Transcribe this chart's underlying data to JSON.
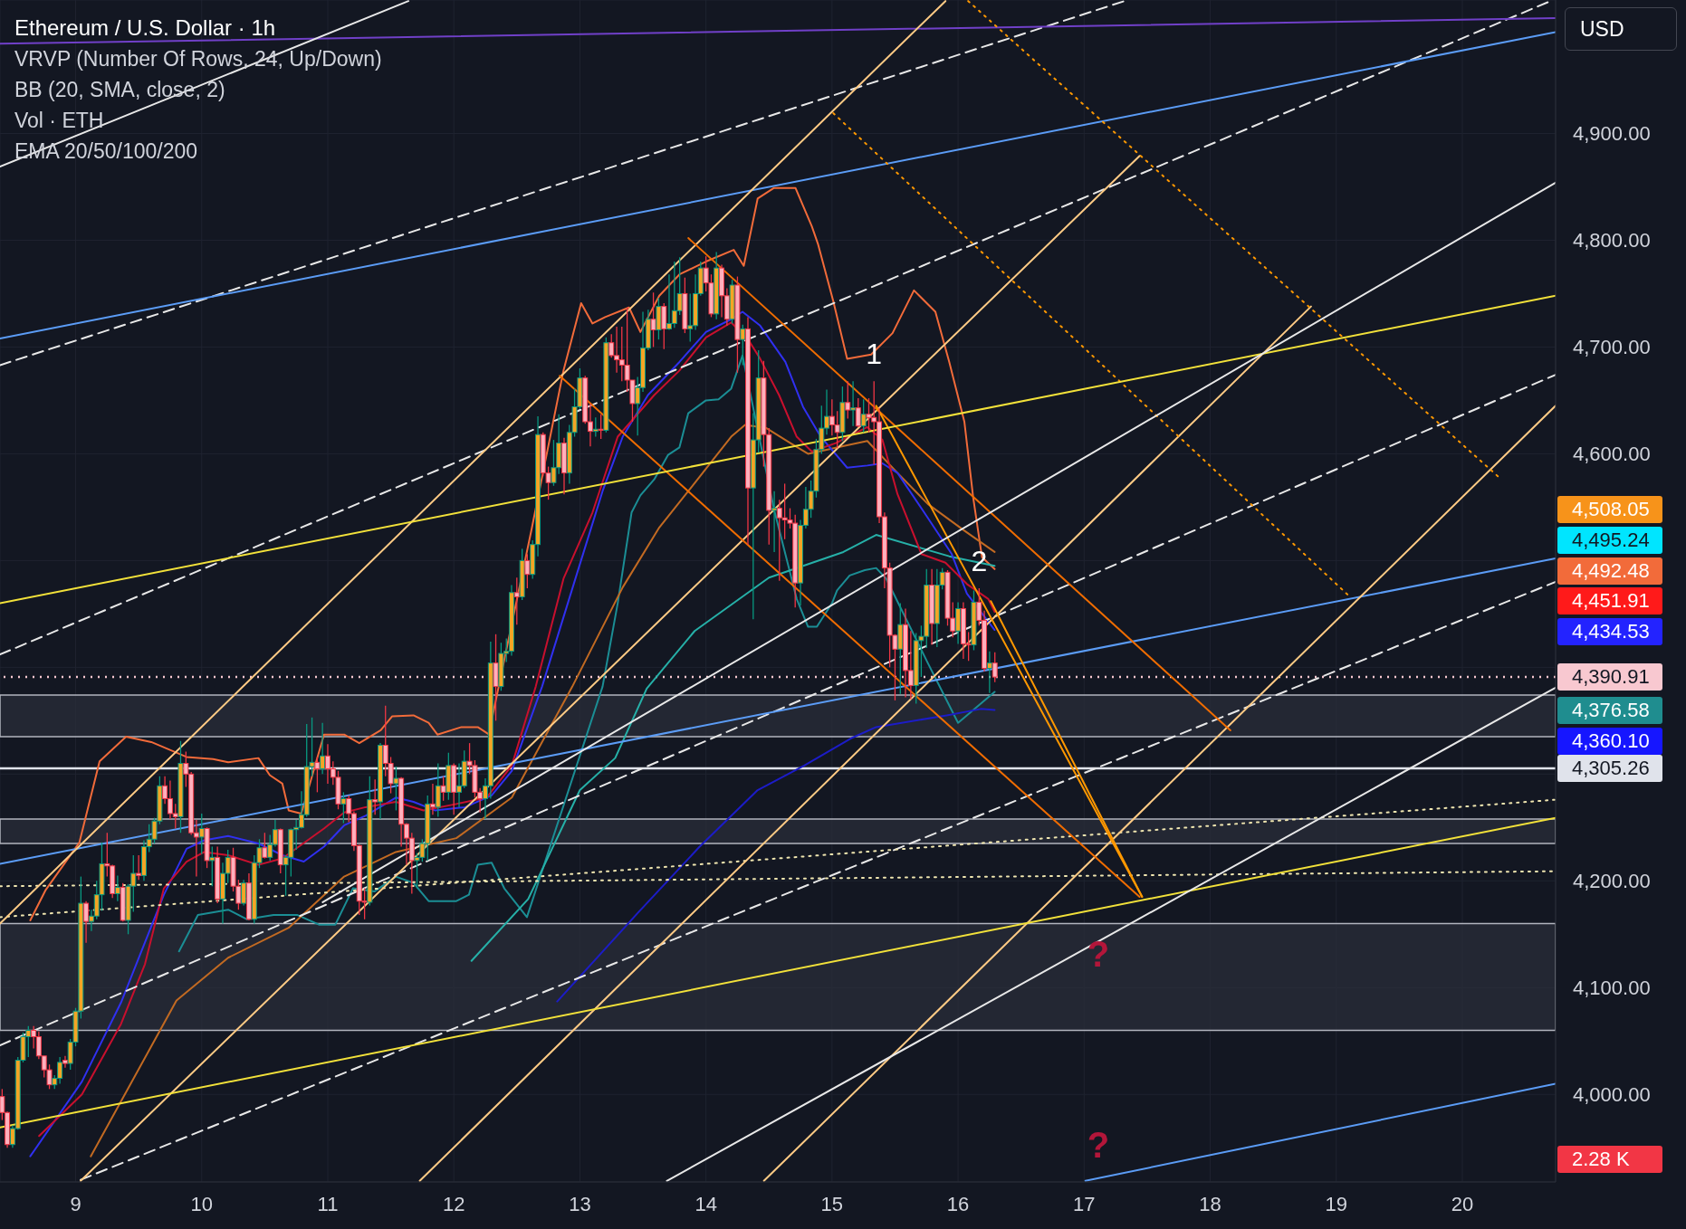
{
  "chart_data": {
    "type": "candlestick",
    "title": "Ethereum / U.S. Dollar · 1h",
    "ylabel": "USD",
    "annotations": [
      "VRVP (Number Of Rows, 24, Up/Down)",
      "BB (20, SMA, close, 2)",
      "Vol · ETH",
      "EMA 20/50/100/200",
      "2.28 K",
      {
        "text": "1",
        "x": 15.333,
        "y": 4668
      },
      {
        "text": "2",
        "x": 16.167,
        "y": 4474
      },
      "?",
      "?",
      "4,508.05",
      "4,495.24",
      "4,492.48",
      "4,451.91",
      "4,434.53",
      "4,376.58",
      "4,360.10"
    ],
    "xlim": [
      8.4,
      20.74
    ],
    "xticks": [
      9,
      10,
      11,
      12,
      13,
      14,
      15,
      16,
      17,
      18,
      19,
      20
    ],
    "ylim": [
      3918,
      5025
    ],
    "yticks": [
      {
        "value": 4000,
        "label": "4,000.00"
      },
      {
        "value": 4100,
        "label": "4,100.00"
      },
      {
        "value": 4200,
        "label": "4,200.00"
      },
      {
        "value": 4300,
        "label": null
      },
      {
        "value": 4400,
        "label": null
      },
      {
        "value": 4500,
        "label": null
      },
      {
        "value": 4600,
        "label": "4,600.00"
      },
      {
        "value": 4700,
        "label": "4,700.00"
      },
      {
        "value": 4800,
        "label": "4,800.00"
      },
      {
        "value": 4900,
        "label": "4,900.00"
      }
    ],
    "grid": true,
    "ref_lines": [
      {
        "axis": "y",
        "value": 4390.91,
        "label": "4,390.91",
        "color": "#f8c8d0",
        "line_style": "dotted"
      },
      {
        "axis": "y",
        "value": 4305.26,
        "label": "4,305.26",
        "color": "#e0e3eb"
      }
    ],
    "bands": [
      {
        "axis": "y",
        "from": 4335,
        "to": 4374,
        "color": "#2a2e39"
      },
      {
        "axis": "y",
        "from": 4235,
        "to": 4258,
        "color": "#2a2e39"
      },
      {
        "axis": "y",
        "from": 4060,
        "to": 4160,
        "color": "#2a2e39"
      }
    ],
    "x": [
      8.417,
      8.458,
      8.5,
      8.542,
      8.583,
      8.625,
      8.667,
      8.708,
      8.75,
      8.792,
      8.833,
      8.875,
      8.917,
      8.958,
      9,
      9.042,
      9.083,
      9.125,
      9.167,
      9.208,
      9.25,
      9.292,
      9.333,
      9.375,
      9.417,
      9.458,
      9.5,
      9.542,
      9.583,
      9.625,
      9.667,
      9.708,
      9.75,
      9.792,
      9.833,
      9.875,
      9.917,
      9.958,
      10,
      10.042,
      10.083,
      10.125,
      10.167,
      10.208,
      10.25,
      10.292,
      10.333,
      10.375,
      10.417,
      10.458,
      10.5,
      10.542,
      10.583,
      10.625,
      10.667,
      10.708,
      10.75,
      10.792,
      10.833,
      10.875,
      10.917,
      10.958,
      11,
      11.042,
      11.083,
      11.125,
      11.167,
      11.208,
      11.25,
      11.292,
      11.333,
      11.375,
      11.417,
      11.458,
      11.5,
      11.542,
      11.583,
      11.625,
      11.667,
      11.708,
      11.75,
      11.792,
      11.833,
      11.875,
      11.917,
      11.958,
      12,
      12.042,
      12.083,
      12.125,
      12.167,
      12.208,
      12.25,
      12.292,
      12.333,
      12.375,
      12.417,
      12.458,
      12.5,
      12.542,
      12.583,
      12.625,
      12.667,
      12.708,
      12.75,
      12.792,
      12.833,
      12.875,
      12.917,
      12.958,
      13,
      13.042,
      13.083,
      13.125,
      13.167,
      13.208,
      13.25,
      13.292,
      13.333,
      13.375,
      13.417,
      13.458,
      13.5,
      13.542,
      13.583,
      13.625,
      13.667,
      13.708,
      13.75,
      13.792,
      13.833,
      13.875,
      13.917,
      13.958,
      14,
      14.042,
      14.083,
      14.125,
      14.167,
      14.208,
      14.25,
      14.292,
      14.333,
      14.375,
      14.417,
      14.458,
      14.5,
      14.542,
      14.583,
      14.625,
      14.667,
      14.708,
      14.75,
      14.792,
      14.833,
      14.875,
      14.917,
      14.958,
      15,
      15.042,
      15.083,
      15.125,
      15.167,
      15.208,
      15.25,
      15.292,
      15.333,
      15.375,
      15.417,
      15.458,
      15.5,
      15.542,
      15.583,
      15.625,
      15.667,
      15.708,
      15.75,
      15.792,
      15.833,
      15.875,
      15.917,
      15.958,
      16,
      16.042,
      16.083,
      16.125,
      16.167,
      16.208,
      16.25,
      16.292
    ],
    "ohlc": [
      [
        3998,
        4005,
        3976,
        3983
      ],
      [
        3983,
        3984,
        3950,
        3953
      ],
      [
        3953,
        3971,
        3950,
        3968
      ],
      [
        3968,
        4035,
        3967,
        4032
      ],
      [
        4032,
        4058,
        4030,
        4054
      ],
      [
        4054,
        4064,
        4035,
        4060
      ],
      [
        4060,
        4064,
        4043,
        4054
      ],
      [
        4054,
        4059,
        4033,
        4036
      ],
      [
        4036,
        4036,
        4016,
        4023
      ],
      [
        4023,
        4028,
        4005,
        4009
      ],
      [
        4009,
        4018,
        4005,
        4015
      ],
      [
        4015,
        4035,
        4010,
        4030
      ],
      [
        4032,
        4036,
        4025,
        4029
      ],
      [
        4029,
        4052,
        4023,
        4049
      ],
      [
        4049,
        4081,
        4045,
        4078
      ],
      [
        4078,
        4204,
        4071,
        4179
      ],
      [
        4179,
        4181,
        4142,
        4162
      ],
      [
        4162,
        4173,
        4153,
        4167
      ],
      [
        4167,
        4200,
        4164,
        4187
      ],
      [
        4187,
        4236,
        4172,
        4216
      ],
      [
        4216,
        4245,
        4204,
        4214
      ],
      [
        4214,
        4215,
        4184,
        4188
      ],
      [
        4188,
        4205,
        4181,
        4194
      ],
      [
        4194,
        4198,
        4162,
        4163
      ],
      [
        4163,
        4197,
        4150,
        4195
      ],
      [
        4195,
        4224,
        4171,
        4207
      ],
      [
        4207,
        4224,
        4201,
        4205
      ],
      [
        4205,
        4238,
        4200,
        4232
      ],
      [
        4232,
        4253,
        4227,
        4239
      ],
      [
        4239,
        4259,
        4235,
        4256
      ],
      [
        4256,
        4298,
        4253,
        4289
      ],
      [
        4289,
        4298,
        4272,
        4277
      ],
      [
        4277,
        4294,
        4258,
        4263
      ],
      [
        4263,
        4272,
        4249,
        4260
      ],
      [
        4260,
        4331,
        4245,
        4310
      ],
      [
        4310,
        4321,
        4288,
        4300
      ],
      [
        4300,
        4302,
        4243,
        4245
      ],
      [
        4245,
        4257,
        4204,
        4241
      ],
      [
        4241,
        4263,
        4225,
        4249
      ],
      [
        4249,
        4250,
        4212,
        4219
      ],
      [
        4219,
        4232,
        4195,
        4222
      ],
      [
        4222,
        4232,
        4179,
        4183
      ],
      [
        4183,
        4217,
        4160,
        4207
      ],
      [
        4207,
        4229,
        4198,
        4222
      ],
      [
        4222,
        4231,
        4190,
        4195
      ],
      [
        4195,
        4201,
        4173,
        4179
      ],
      [
        4179,
        4201,
        4177,
        4198
      ],
      [
        4198,
        4207,
        4163,
        4164
      ],
      [
        4164,
        4224,
        4160,
        4217
      ],
      [
        4217,
        4239,
        4212,
        4231
      ],
      [
        4231,
        4245,
        4221,
        4222
      ],
      [
        4222,
        4243,
        4219,
        4234
      ],
      [
        4234,
        4257,
        4232,
        4248
      ],
      [
        4248,
        4249,
        4207,
        4215
      ],
      [
        4215,
        4224,
        4186,
        4222
      ],
      [
        4222,
        4249,
        4204,
        4248
      ],
      [
        4248,
        4257,
        4229,
        4250
      ],
      [
        4250,
        4284,
        4249,
        4262
      ],
      [
        4262,
        4347,
        4260,
        4307
      ],
      [
        4307,
        4353,
        4298,
        4311
      ],
      [
        4311,
        4316,
        4283,
        4305
      ],
      [
        4305,
        4348,
        4300,
        4317
      ],
      [
        4317,
        4328,
        4291,
        4305
      ],
      [
        4305,
        4312,
        4290,
        4297
      ],
      [
        4297,
        4303,
        4267,
        4272
      ],
      [
        4272,
        4283,
        4254,
        4277
      ],
      [
        4277,
        4280,
        4255,
        4263
      ],
      [
        4263,
        4265,
        4228,
        4233
      ],
      [
        4233,
        4234,
        4168,
        4181
      ],
      [
        4181,
        4193,
        4164,
        4180
      ],
      [
        4180,
        4298,
        4177,
        4276
      ],
      [
        4276,
        4295,
        4262,
        4274
      ],
      [
        4274,
        4329,
        4258,
        4327
      ],
      [
        4327,
        4364,
        4298,
        4310
      ],
      [
        4310,
        4316,
        4282,
        4291
      ],
      [
        4291,
        4307,
        4266,
        4296
      ],
      [
        4296,
        4297,
        4232,
        4253
      ],
      [
        4253,
        4254,
        4215,
        4240
      ],
      [
        4240,
        4245,
        4188,
        4219
      ],
      [
        4219,
        4226,
        4193,
        4222
      ],
      [
        4222,
        4239,
        4218,
        4235
      ],
      [
        4235,
        4280,
        4219,
        4272
      ],
      [
        4272,
        4291,
        4262,
        4269
      ],
      [
        4269,
        4310,
        4260,
        4289
      ],
      [
        4289,
        4298,
        4275,
        4283
      ],
      [
        4283,
        4320,
        4276,
        4308
      ],
      [
        4308,
        4310,
        4262,
        4283
      ],
      [
        4283,
        4310,
        4269,
        4289
      ],
      [
        4289,
        4322,
        4287,
        4312
      ],
      [
        4312,
        4329,
        4300,
        4308
      ],
      [
        4308,
        4313,
        4278,
        4283
      ],
      [
        4283,
        4287,
        4264,
        4277
      ],
      [
        4277,
        4296,
        4258,
        4289
      ],
      [
        4289,
        4424,
        4277,
        4404
      ],
      [
        4404,
        4431,
        4350,
        4382
      ],
      [
        4382,
        4423,
        4378,
        4413
      ],
      [
        4413,
        4427,
        4405,
        4415
      ],
      [
        4415,
        4477,
        4411,
        4470
      ],
      [
        4470,
        4484,
        4440,
        4466
      ],
      [
        4466,
        4511,
        4463,
        4500
      ],
      [
        4500,
        4506,
        4474,
        4487
      ],
      [
        4487,
        4519,
        4483,
        4515
      ],
      [
        4515,
        4635,
        4504,
        4618
      ],
      [
        4618,
        4620,
        4579,
        4582
      ],
      [
        4582,
        4588,
        4557,
        4573
      ],
      [
        4573,
        4613,
        4570,
        4587
      ],
      [
        4587,
        4637,
        4581,
        4610
      ],
      [
        4610,
        4615,
        4562,
        4582
      ],
      [
        4582,
        4627,
        4572,
        4620
      ],
      [
        4620,
        4661,
        4616,
        4644
      ],
      [
        4644,
        4680,
        4642,
        4671
      ],
      [
        4671,
        4673,
        4628,
        4630
      ],
      [
        4630,
        4647,
        4607,
        4621
      ],
      [
        4621,
        4634,
        4616,
        4623
      ],
      [
        4623,
        4637,
        4614,
        4622
      ],
      [
        4622,
        4709,
        4620,
        4704
      ],
      [
        4704,
        4712,
        4690,
        4692
      ],
      [
        4692,
        4719,
        4676,
        4688
      ],
      [
        4688,
        4719,
        4668,
        4683
      ],
      [
        4683,
        4737,
        4658,
        4669
      ],
      [
        4669,
        4669,
        4630,
        4647
      ],
      [
        4647,
        4672,
        4617,
        4662
      ],
      [
        4662,
        4733,
        4658,
        4699
      ],
      [
        4699,
        4735,
        4697,
        4726
      ],
      [
        4726,
        4751,
        4700,
        4716
      ],
      [
        4716,
        4746,
        4707,
        4738
      ],
      [
        4738,
        4741,
        4698,
        4717
      ],
      [
        4717,
        4768,
        4716,
        4722
      ],
      [
        4722,
        4780,
        4718,
        4734
      ],
      [
        4734,
        4784,
        4730,
        4750
      ],
      [
        4750,
        4765,
        4713,
        4717
      ],
      [
        4717,
        4750,
        4705,
        4720
      ],
      [
        4720,
        4768,
        4716,
        4750
      ],
      [
        4750,
        4780,
        4748,
        4774
      ],
      [
        4774,
        4785,
        4752,
        4760
      ],
      [
        4760,
        4768,
        4728,
        4731
      ],
      [
        4731,
        4789,
        4726,
        4774
      ],
      [
        4774,
        4777,
        4728,
        4748
      ],
      [
        4748,
        4755,
        4720,
        4726
      ],
      [
        4726,
        4763,
        4722,
        4758
      ],
      [
        4758,
        4766,
        4676,
        4707
      ],
      [
        4707,
        4721,
        4683,
        4717
      ],
      [
        4717,
        4728,
        4515,
        4568
      ],
      [
        4568,
        4638,
        4445,
        4613
      ],
      [
        4613,
        4697,
        4601,
        4671
      ],
      [
        4671,
        4687,
        4588,
        4618
      ],
      [
        4618,
        4624,
        4515,
        4547
      ],
      [
        4547,
        4565,
        4508,
        4549
      ],
      [
        4549,
        4557,
        4481,
        4540
      ],
      [
        4540,
        4572,
        4520,
        4538
      ],
      [
        4538,
        4549,
        4530,
        4535
      ],
      [
        4535,
        4543,
        4456,
        4479
      ],
      [
        4479,
        4538,
        4458,
        4533
      ],
      [
        4533,
        4569,
        4530,
        4548
      ],
      [
        4548,
        4575,
        4540,
        4565
      ],
      [
        4565,
        4614,
        4559,
        4604
      ],
      [
        4604,
        4645,
        4600,
        4624
      ],
      [
        4624,
        4660,
        4618,
        4635
      ],
      [
        4635,
        4651,
        4617,
        4627
      ],
      [
        4627,
        4640,
        4605,
        4620
      ],
      [
        4620,
        4663,
        4612,
        4648
      ],
      [
        4648,
        4668,
        4633,
        4641
      ],
      [
        4641,
        4668,
        4626,
        4643
      ],
      [
        4643,
        4652,
        4625,
        4626
      ],
      [
        4626,
        4651,
        4620,
        4637
      ],
      [
        4637,
        4652,
        4620,
        4634
      ],
      [
        4634,
        4668,
        4590,
        4630
      ],
      [
        4630,
        4643,
        4535,
        4541
      ],
      [
        4541,
        4545,
        4474,
        4493
      ],
      [
        4493,
        4498,
        4400,
        4430
      ],
      [
        4430,
        4431,
        4369,
        4417
      ],
      [
        4417,
        4460,
        4375,
        4440
      ],
      [
        4440,
        4455,
        4372,
        4397
      ],
      [
        4397,
        4434,
        4370,
        4383
      ],
      [
        4383,
        4432,
        4366,
        4425
      ],
      [
        4425,
        4439,
        4391,
        4429
      ],
      [
        4429,
        4492,
        4418,
        4477
      ],
      [
        4477,
        4492,
        4421,
        4441
      ],
      [
        4441,
        4492,
        4419,
        4477
      ],
      [
        4477,
        4493,
        4473,
        4489
      ],
      [
        4489,
        4491,
        4439,
        4446
      ],
      [
        4446,
        4461,
        4428,
        4434
      ],
      [
        4434,
        4461,
        4422,
        4455
      ],
      [
        4455,
        4461,
        4408,
        4422
      ],
      [
        4422,
        4433,
        4406,
        4421
      ],
      [
        4421,
        4472,
        4416,
        4461
      ],
      [
        4461,
        4474,
        4439,
        4444
      ],
      [
        4444,
        4453,
        4396,
        4399
      ],
      [
        4399,
        4415,
        4376,
        4404
      ],
      [
        4404,
        4414,
        4386,
        4390.91
      ]
    ],
    "series": [
      {
        "type": "line",
        "color": "#f26b3a",
        "x": [
          8.64,
          8.76,
          9.03,
          9.19,
          9.4,
          9.6,
          9.88,
          10.09,
          10.21,
          10.45,
          10.54,
          10.64,
          10.69,
          10.79,
          10.97,
          11.13,
          11.25,
          11.42,
          11.51,
          11.68,
          11.8,
          11.87,
          12.06,
          12.19,
          12.28,
          12.31,
          12.62,
          12.87,
          13.01,
          13.1,
          13.2,
          13.39,
          13.48,
          13.63,
          13.79,
          14.0,
          14.22,
          14.3,
          14.41,
          14.54,
          14.71,
          14.84,
          14.89,
          15.01,
          15.12,
          15.31,
          15.48,
          15.65,
          15.82,
          15.93,
          16.05,
          16.12,
          16.19,
          16.29
        ],
        "values": [
          4163,
          4191,
          4236,
          4312,
          4335,
          4330,
          4316,
          4314,
          4311,
          4315,
          4299,
          4291,
          4266,
          4263,
          4337,
          4337,
          4329,
          4341,
          4354,
          4355,
          4348,
          4337,
          4344,
          4344,
          4337,
          4356,
          4531,
          4678,
          4741,
          4722,
          4728,
          4737,
          4714,
          4748,
          4768,
          4780,
          4791,
          4776,
          4839,
          4849,
          4849,
          4813,
          4796,
          4743,
          4689,
          4693,
          4713,
          4753,
          4733,
          4686,
          4630,
          4559,
          4503,
          4492
        ]
      },
      {
        "type": "line",
        "color": "#1b8e95",
        "x": [
          9.82,
          9.97,
          10.21,
          10.36,
          10.57,
          10.76,
          10.93,
          11.06,
          11.2,
          11.37,
          11.54,
          11.68,
          11.8,
          12.02,
          12.12,
          12.19,
          12.3,
          12.4,
          12.58,
          13.18,
          13.3,
          13.41,
          13.48,
          13.59,
          13.7,
          13.79,
          13.86,
          14.0,
          14.1,
          14.2,
          14.29,
          14.54,
          14.72,
          14.81,
          14.88,
          15.0,
          15.04,
          15.14,
          15.26,
          15.35,
          15.43,
          15.76,
          16.0,
          16.29
        ],
        "values": [
          4134,
          4168,
          4173,
          4164,
          4168,
          4168,
          4159,
          4159,
          4193,
          4190,
          4204,
          4198,
          4181,
          4181,
          4187,
          4215,
          4217,
          4193,
          4166,
          4382,
          4460,
          4545,
          4561,
          4576,
          4599,
          4606,
          4638,
          4650,
          4651,
          4661,
          4692,
          4548,
          4464,
          4438,
          4438,
          4460,
          4472,
          4486,
          4491,
          4493,
          4483,
          4404,
          4348,
          4377
        ]
      },
      {
        "type": "line",
        "color": "#26b0a8",
        "x": [
          12.14,
          12.59,
          13.0,
          13.28,
          13.53,
          13.91,
          14.5,
          15.09,
          15.35,
          15.93,
          16.29
        ],
        "values": [
          4125,
          4183,
          4285,
          4315,
          4380,
          4434,
          4484,
          4508,
          4524,
          4504,
          4495
        ]
      },
      {
        "type": "line",
        "color": "#1c1cc8",
        "x": [
          12.82,
          13.46,
          13.95,
          14.41,
          14.78,
          15.16,
          15.35,
          15.91,
          16.18,
          16.29
        ],
        "values": [
          4087,
          4170,
          4232,
          4285,
          4308,
          4334,
          4344,
          4355,
          4361,
          4360
        ]
      },
      {
        "type": "line",
        "color": "#c26a22",
        "x": [
          9.12,
          9.8,
          10.21,
          10.69,
          11.13,
          11.54,
          12.02,
          12.46,
          12.94,
          13.34,
          13.63,
          13.86,
          14.2,
          14.31,
          14.48,
          14.67,
          14.81,
          15.12,
          15.28,
          15.52,
          15.76,
          16.05,
          16.29
        ],
        "values": [
          3942,
          4088,
          4128,
          4156,
          4204,
          4227,
          4240,
          4278,
          4382,
          4475,
          4531,
          4565,
          4616,
          4627,
          4624,
          4610,
          4600,
          4608,
          4612,
          4582,
          4553,
          4528,
          4508
        ]
      },
      {
        "type": "line",
        "color": "#3030f0",
        "x": [
          8.64,
          9.05,
          9.36,
          9.7,
          9.88,
          10.02,
          10.21,
          10.45,
          10.64,
          10.81,
          10.97,
          11.13,
          11.3,
          11.54,
          11.68,
          11.85,
          12.09,
          12.3,
          12.46,
          12.7,
          12.98,
          13.18,
          13.34,
          13.54,
          13.79,
          14.0,
          14.2,
          14.29,
          14.43,
          14.63,
          14.77,
          14.91,
          15.12,
          15.28,
          15.4,
          15.52,
          15.76,
          15.95,
          16.07,
          16.29
        ],
        "values": [
          3942,
          4012,
          4086,
          4187,
          4230,
          4238,
          4242,
          4235,
          4224,
          4218,
          4232,
          4252,
          4261,
          4278,
          4274,
          4266,
          4269,
          4280,
          4303,
          4382,
          4489,
          4565,
          4616,
          4655,
          4686,
          4714,
          4726,
          4733,
          4720,
          4686,
          4644,
          4616,
          4587,
          4589,
          4591,
          4582,
          4540,
          4506,
          4469,
          4435
        ]
      },
      {
        "type": "line",
        "color": "#c8102e",
        "x": [
          8.71,
          9.05,
          9.36,
          9.55,
          9.7,
          9.88,
          10.02,
          10.21,
          10.45,
          10.64,
          10.97,
          11.13,
          11.3,
          11.54,
          11.76,
          12.02,
          12.26,
          12.46,
          12.65,
          12.87,
          13.1,
          13.3,
          13.59,
          13.79,
          14.0,
          14.2,
          14.34,
          14.43,
          14.58,
          14.72,
          14.84,
          15.03,
          15.28,
          15.4,
          15.52,
          15.71,
          15.9,
          16.07,
          16.24,
          16.29
        ],
        "values": [
          3961,
          4000,
          4066,
          4122,
          4193,
          4218,
          4227,
          4224,
          4215,
          4221,
          4249,
          4264,
          4269,
          4274,
          4266,
          4272,
          4278,
          4308,
          4382,
          4483,
          4545,
          4616,
          4655,
          4678,
          4709,
          4723,
          4706,
          4689,
          4655,
          4616,
          4602,
          4610,
          4625,
          4613,
          4562,
          4506,
          4498,
          4478,
          4464,
          4452
        ]
      },
      {
        "type": "line",
        "color": "#e8e8e8",
        "line_style": "dashed",
        "x": [
          8.4,
          20.74
        ],
        "values": [
          4046,
          4674
        ]
      },
      {
        "type": "line",
        "color": "#e8e8e8",
        "line_style": "dashed",
        "x": [
          9.04,
          20.74
        ],
        "values": [
          3920,
          4480
        ]
      },
      {
        "type": "line",
        "color": "#e8e8e8",
        "line_style": "dashed",
        "x": [
          8.4,
          20.7
        ],
        "values": [
          4412,
          5024
        ]
      },
      {
        "type": "line",
        "color": "#e8e8e8",
        "line_style": "dashed",
        "x": [
          8.4,
          17.32
        ],
        "values": [
          4683,
          5024
        ]
      },
      {
        "type": "line",
        "color": "#f0e6b0",
        "line_style": "dotted",
        "x": [
          8.4,
          20.74
        ],
        "values": [
          4195,
          4209
        ]
      },
      {
        "type": "line",
        "color": "#f0e6b0",
        "line_style": "dotted",
        "x": [
          8.4,
          20.74
        ],
        "values": [
          4166,
          4276
        ]
      },
      {
        "type": "line",
        "color": "#7040c8",
        "x": [
          8.4,
          20.74
        ],
        "values": [
          4984,
          5008
        ]
      },
      {
        "type": "line",
        "color": "#5b9cf6",
        "x": [
          8.4,
          20.74
        ],
        "values": [
          4708,
          4995
        ]
      },
      {
        "type": "line",
        "color": "#5b9cf6",
        "x": [
          8.4,
          20.74
        ],
        "values": [
          4216,
          4502
        ]
      },
      {
        "type": "line",
        "color": "#5b9cf6",
        "x": [
          17.01,
          20.74
        ],
        "values": [
          3919,
          4010
        ]
      },
      {
        "type": "line",
        "color": "#ffcb85",
        "x": [
          8.4,
          15.9
        ],
        "values": [
          4160,
          5024
        ]
      },
      {
        "type": "line",
        "color": "#ffcb85",
        "x": [
          9.04,
          17.44
        ],
        "values": [
          3919,
          4879
        ]
      },
      {
        "type": "line",
        "color": "#ffcb85",
        "x": [
          11.73,
          18.8
        ],
        "values": [
          3919,
          4738
        ]
      },
      {
        "type": "line",
        "color": "#ffcb85",
        "x": [
          14.46,
          20.74
        ],
        "values": [
          3919,
          4645
        ]
      },
      {
        "type": "line",
        "color": "#ef6c00",
        "x": [
          13.86,
          18.16
        ],
        "values": [
          4802,
          4341
        ]
      },
      {
        "type": "line",
        "color": "#ef6c00",
        "x": [
          12.84,
          17.44
        ],
        "values": [
          4673,
          4185
        ]
      },
      {
        "type": "line",
        "color": "#ff9800",
        "x": [
          15.35,
          17.46
        ],
        "values": [
          4645,
          4185
        ]
      },
      {
        "type": "line",
        "color": "#ff9800",
        "x": [
          16.26,
          17.46
        ],
        "values": [
          4462,
          4185
        ]
      },
      {
        "type": "line",
        "color": "#ff9800",
        "line_style": "dotted",
        "x": [
          16.08,
          20.3
        ],
        "values": [
          5024,
          4577
        ]
      },
      {
        "type": "line",
        "color": "#ff9800",
        "line_style": "dotted",
        "x": [
          15.01,
          19.1
        ],
        "values": [
          4919,
          4467
        ]
      },
      {
        "type": "line",
        "color": "#f2e13a",
        "x": [
          8.4,
          20.74
        ],
        "values": [
          4460,
          4748
        ]
      },
      {
        "type": "line",
        "color": "#f2e13a",
        "x": [
          8.4,
          20.74
        ],
        "values": [
          3969,
          4259
        ]
      },
      {
        "type": "line",
        "color": "#e8e8e8",
        "x": [
          8.4,
          11.64
        ],
        "values": [
          4869,
          5024
        ]
      },
      {
        "type": "line",
        "color": "#e8e8e8",
        "x": [
          10.96,
          20.74
        ],
        "values": [
          4180,
          4854
        ]
      },
      {
        "type": "line",
        "color": "#e8e8e8",
        "x": [
          13.69,
          20.74
        ],
        "values": [
          3919,
          4381
        ]
      }
    ]
  }
}
